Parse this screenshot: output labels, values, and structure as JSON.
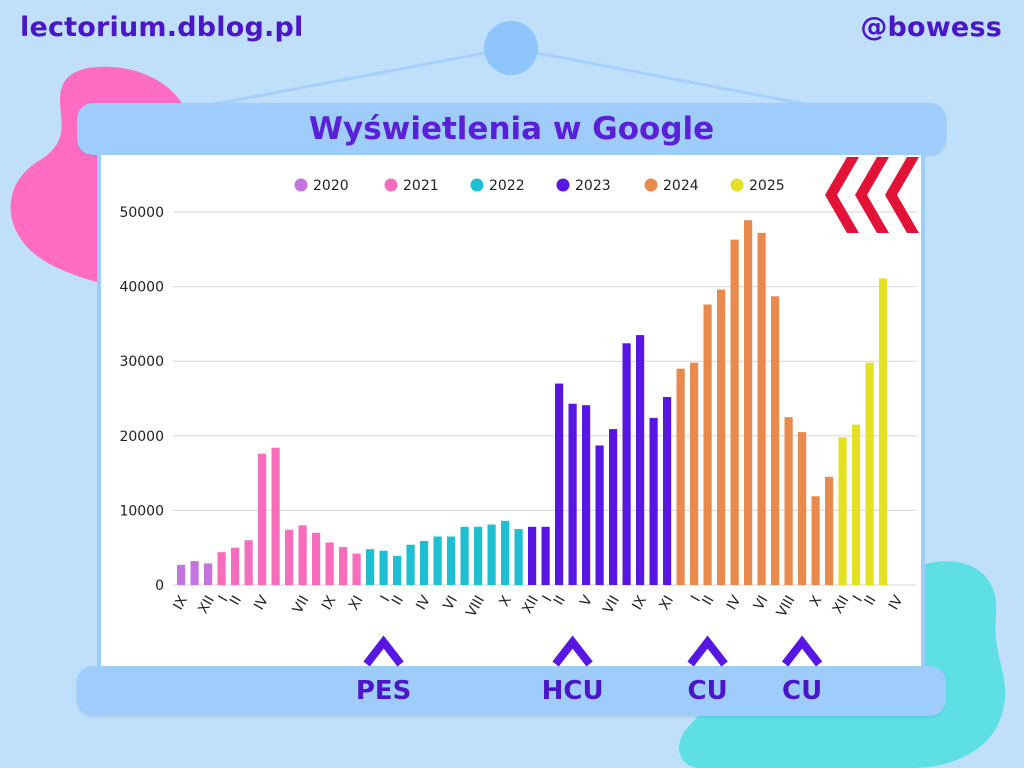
{
  "header": {
    "site": "lectorium.dblog.pl",
    "handle": "@bowess"
  },
  "colors": {
    "background": "#bfdffb",
    "banner": "#9fcdfb",
    "accent_text": "#4a16c8",
    "hive_logo": "#e31337"
  },
  "logo": {
    "icon": "hive-logo-icon"
  },
  "chart_data": {
    "type": "bar",
    "title": "Wyświetlenia w Google",
    "xlabel": "",
    "ylabel": "",
    "ylim": [
      0,
      50000
    ],
    "yticks": [
      0,
      10000,
      20000,
      30000,
      40000,
      50000
    ],
    "grid": true,
    "legend_position": "top",
    "legend": [
      {
        "name": "2020",
        "color": "#c374de"
      },
      {
        "name": "2021",
        "color": "#f86cbc"
      },
      {
        "name": "2022",
        "color": "#1ebfd2"
      },
      {
        "name": "2023",
        "color": "#5716e3"
      },
      {
        "name": "2024",
        "color": "#e98a4c"
      },
      {
        "name": "2025",
        "color": "#e4e124"
      }
    ],
    "series": [
      {
        "name": "2020",
        "start_month": "IX",
        "values": [
          2700,
          3200,
          2900
        ]
      },
      {
        "name": "2021",
        "start_month": "XII",
        "values": [
          4400,
          5000,
          6000,
          17600,
          18400,
          7400,
          8000,
          7000,
          5700,
          5100,
          4200
        ]
      },
      {
        "name": "2022",
        "start_month": "XI",
        "values": [
          4800,
          4600,
          3900,
          5400,
          5900,
          6500,
          6500,
          7800,
          7800,
          8100,
          8600,
          7500
        ]
      },
      {
        "name": "2023",
        "start_month": "XI",
        "values": [
          7800,
          7800,
          27000,
          24300,
          24100,
          18700,
          20900,
          32400,
          33500,
          22400,
          25200
        ]
      },
      {
        "name": "2024",
        "start_month": "X",
        "values": [
          29000,
          29800,
          37600,
          39600,
          46300,
          48900,
          47200,
          38700,
          22500,
          20500,
          11900,
          14500
        ]
      },
      {
        "name": "2025",
        "start_month": "X",
        "values": [
          19800,
          21500,
          29800,
          41100
        ]
      }
    ],
    "x_tick_labels": [
      {
        "index": 0,
        "label": "IX"
      },
      {
        "index": 2,
        "label": "XII"
      },
      {
        "index": 3,
        "label": "I"
      },
      {
        "index": 4,
        "label": "II"
      },
      {
        "index": 6,
        "label": "IV"
      },
      {
        "index": 9,
        "label": "VII"
      },
      {
        "index": 11,
        "label": "IX"
      },
      {
        "index": 13,
        "label": "XI"
      },
      {
        "index": 15,
        "label": "I"
      },
      {
        "index": 16,
        "label": "II"
      },
      {
        "index": 18,
        "label": "IV"
      },
      {
        "index": 20,
        "label": "VI"
      },
      {
        "index": 22,
        "label": "VIII"
      },
      {
        "index": 24,
        "label": "X"
      },
      {
        "index": 26,
        "label": "XII"
      },
      {
        "index": 27,
        "label": "I"
      },
      {
        "index": 28,
        "label": "II"
      },
      {
        "index": 30,
        "label": "V"
      },
      {
        "index": 32,
        "label": "VII"
      },
      {
        "index": 34,
        "label": "IX"
      },
      {
        "index": 36,
        "label": "XI"
      },
      {
        "index": 38,
        "label": "I"
      },
      {
        "index": 39,
        "label": "II"
      },
      {
        "index": 41,
        "label": "IV"
      },
      {
        "index": 43,
        "label": "VI"
      },
      {
        "index": 45,
        "label": "VIII"
      },
      {
        "index": 47,
        "label": "X"
      },
      {
        "index": 49,
        "label": "XII"
      },
      {
        "index": 50,
        "label": "I"
      },
      {
        "index": 51,
        "label": "II"
      },
      {
        "index": 53,
        "label": "IV"
      }
    ],
    "annotations": [
      {
        "label": "PES",
        "bar_index": 15
      },
      {
        "label": "HCU",
        "bar_index": 29
      },
      {
        "label": "CU",
        "bar_index": 39
      },
      {
        "label": "CU",
        "bar_index": 46
      }
    ]
  }
}
